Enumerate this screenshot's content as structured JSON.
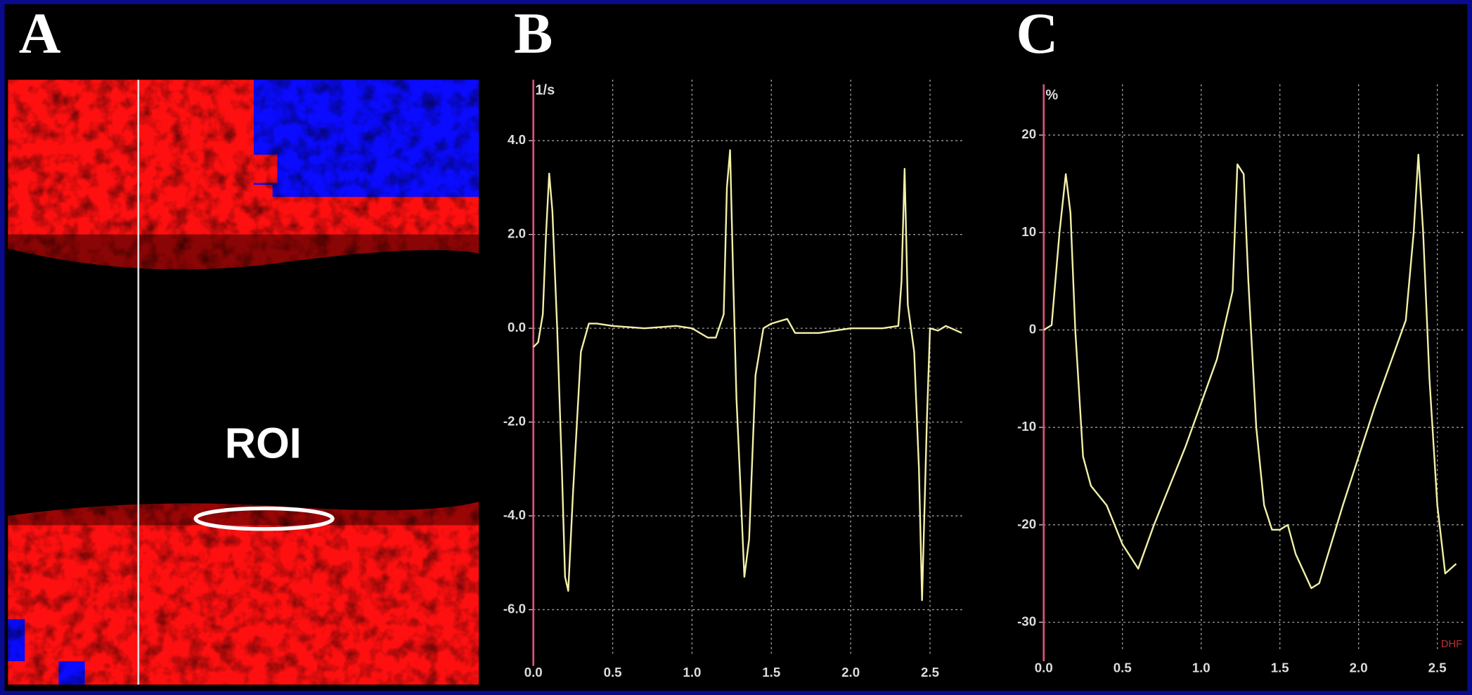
{
  "image": {
    "label": "A",
    "annotation": "ROI"
  },
  "chart_data": [
    {
      "type": "line",
      "label": "B",
      "y_unit": "1/s",
      "grid": true,
      "axis_color": "#e0507a",
      "x": [
        0,
        0.03,
        0.06,
        0.08,
        0.1,
        0.12,
        0.15,
        0.18,
        0.2,
        0.22,
        0.25,
        0.3,
        0.35,
        0.4,
        0.5,
        0.7,
        0.9,
        1.0,
        1.1,
        1.15,
        1.2,
        1.22,
        1.24,
        1.26,
        1.28,
        1.3,
        1.33,
        1.36,
        1.4,
        1.45,
        1.5,
        1.6,
        1.65,
        1.8,
        2.0,
        2.2,
        2.3,
        2.32,
        2.34,
        2.36,
        2.4,
        2.43,
        2.45,
        2.48,
        2.5,
        2.55,
        2.6,
        2.7
      ],
      "series": [
        {
          "color": "#f2f0a8",
          "values": [
            -0.4,
            -0.3,
            0.3,
            2.0,
            3.3,
            2.5,
            0,
            -3,
            -5.3,
            -5.6,
            -3.5,
            -0.5,
            0.1,
            0.1,
            0.05,
            0.0,
            0.05,
            0,
            -0.2,
            -0.2,
            0.3,
            3.0,
            3.8,
            1.0,
            -1.5,
            -3.0,
            -5.3,
            -4.5,
            -1.0,
            0.0,
            0.1,
            0.2,
            -0.1,
            -0.1,
            0.0,
            0.0,
            0.05,
            1.0,
            3.4,
            0.5,
            -0.5,
            -3,
            -5.8,
            -2.0,
            0.0,
            -0.05,
            0.05,
            -0.1
          ]
        }
      ],
      "xlim": [
        0,
        2.72
      ],
      "ylim": [
        -7.2,
        5.3
      ],
      "xticks": [
        {
          "value": 0,
          "label": "0.0"
        },
        0.5,
        {
          "value": 1,
          "label": "1.0"
        },
        1.5,
        {
          "value": 2,
          "label": "2.0"
        },
        2.5
      ],
      "yticks": [
        {
          "value": 4,
          "label": "4.0"
        },
        {
          "value": 2,
          "label": "2.0"
        },
        {
          "value": 0,
          "label": "0.0"
        },
        {
          "value": -2,
          "label": "-2.0"
        },
        {
          "value": -4,
          "label": "-4.0"
        },
        {
          "value": -6,
          "label": "-6.0"
        }
      ]
    },
    {
      "type": "line",
      "label": "C",
      "y_unit": "%",
      "corner_label": "DHF",
      "grid": true,
      "axis_color": "#e0507a",
      "x": [
        0,
        0.05,
        0.1,
        0.14,
        0.17,
        0.2,
        0.25,
        0.3,
        0.4,
        0.5,
        0.6,
        0.7,
        0.9,
        1.1,
        1.2,
        1.23,
        1.27,
        1.3,
        1.35,
        1.4,
        1.45,
        1.5,
        1.55,
        1.6,
        1.7,
        1.75,
        1.9,
        2.1,
        2.3,
        2.35,
        2.38,
        2.41,
        2.45,
        2.5,
        2.55,
        2.62
      ],
      "series": [
        {
          "color": "#f2f0a8",
          "values": [
            0,
            0.5,
            10,
            16,
            12,
            0,
            -13,
            -16,
            -18,
            -22,
            -24.5,
            -20,
            -12,
            -3,
            4,
            17,
            16,
            5,
            -10,
            -18,
            -20.5,
            -20.5,
            -20,
            -23,
            -26.5,
            -26,
            -18,
            -8,
            1,
            10,
            18,
            10,
            -5,
            -18,
            -25,
            -24
          ]
        }
      ],
      "xlim": [
        0,
        2.67
      ],
      "ylim": [
        -34,
        25.2
      ],
      "xticks": [
        {
          "value": 0,
          "label": "0.0"
        },
        0.5,
        {
          "value": 1,
          "label": "1.0"
        },
        1.5,
        {
          "value": 2,
          "label": "2.0"
        },
        2.5
      ],
      "yticks": [
        20,
        10,
        0,
        -10,
        -20,
        -30
      ]
    }
  ]
}
